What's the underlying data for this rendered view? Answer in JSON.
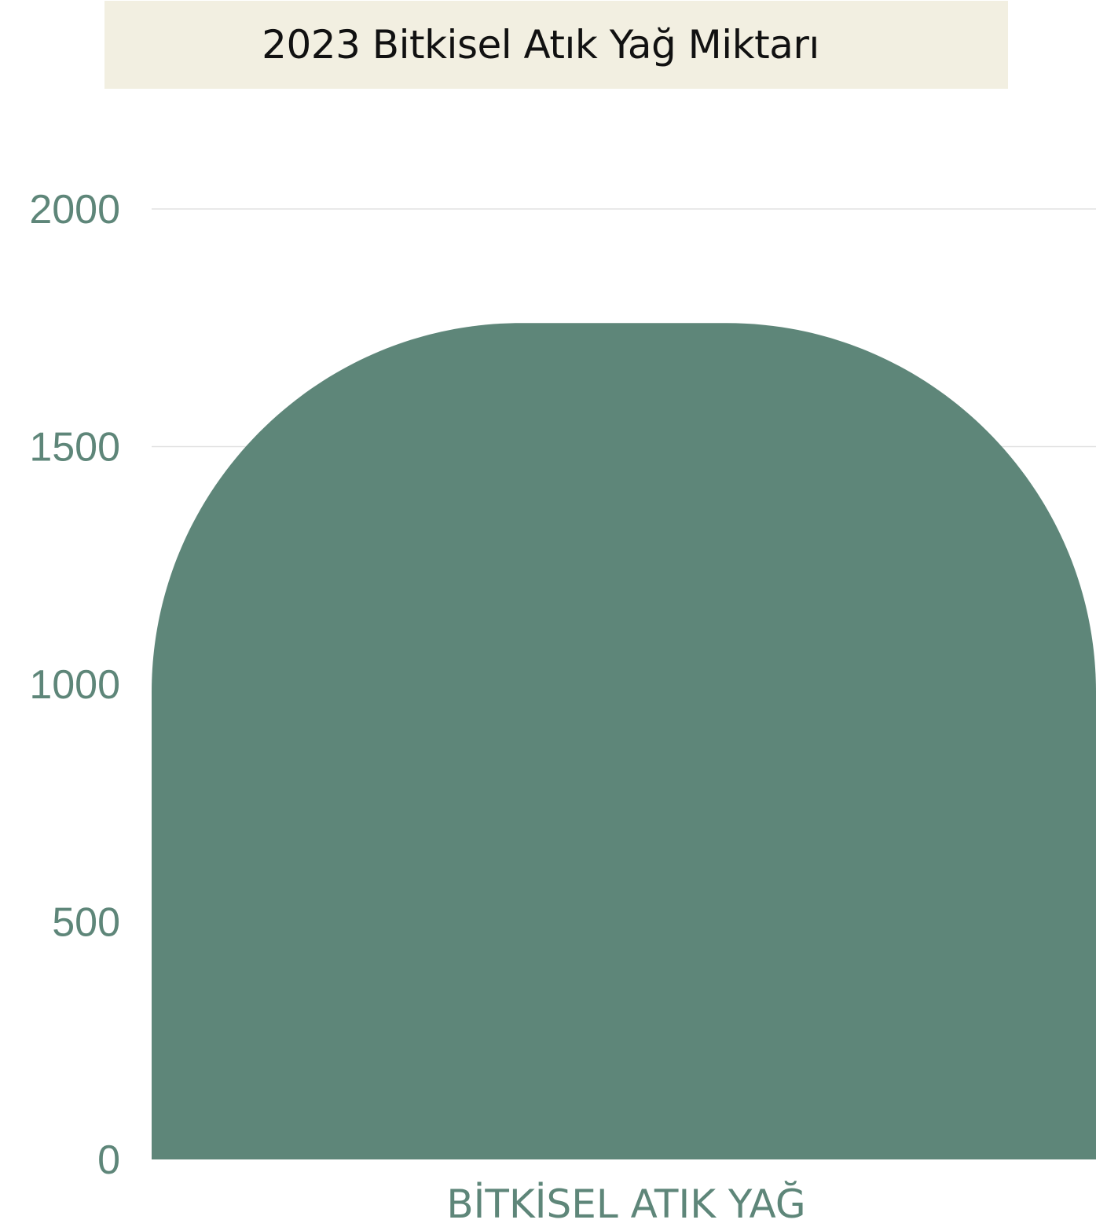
{
  "chart_data": {
    "type": "bar",
    "title": "2023 Bitkisel Atık Yağ Miktarı",
    "categories": [
      "BİTKİSEL ATIK YAĞ"
    ],
    "values": [
      1760
    ],
    "ylim": [
      0,
      2000
    ],
    "yticks": [
      0,
      500,
      1000,
      1500,
      2000
    ],
    "grid": true,
    "xlabel": "",
    "ylabel": "",
    "bar_color": "#5e8679",
    "tick_color": "#5e8679",
    "grid_color": "#e2e2e2",
    "title_background": "#f2efe1"
  }
}
